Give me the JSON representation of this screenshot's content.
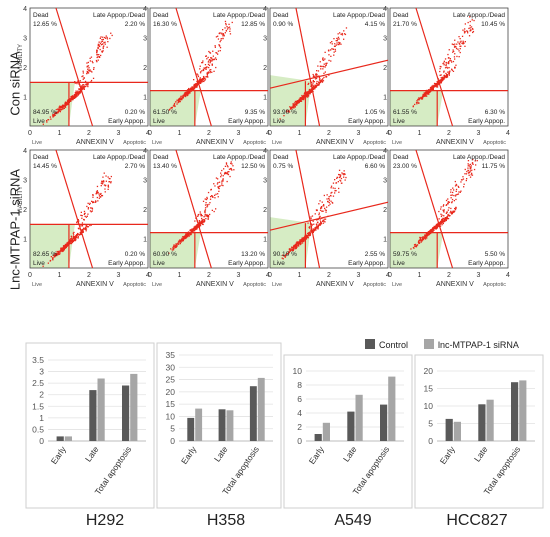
{
  "row_labels": [
    "Con siRNA",
    "Lnc-MTPAP-1 siRNA"
  ],
  "flow_labels": {
    "dead": "Dead",
    "late": "Late Appop./Dead",
    "early": "Early Appop.",
    "live": "Live",
    "annexin": "ANNEXIN V",
    "apoptotic": "Apoptotic",
    "viability": "VIABILITY"
  },
  "flow_ticks": [
    "0",
    "1",
    "2",
    "3",
    "4"
  ],
  "flow_panels": [
    {
      "row": 0,
      "col": 0,
      "dead": "12.65 %",
      "late": "2.20 %",
      "live": "84.95 %",
      "early": "0.20 %"
    },
    {
      "row": 0,
      "col": 1,
      "dead": "16.30 %",
      "late": "12.85 %",
      "live": "61.50 %",
      "early": "9.35 %"
    },
    {
      "row": 0,
      "col": 2,
      "dead": "0.90 %",
      "late": "4.15 %",
      "live": "93.90 %",
      "early": "1.05 %"
    },
    {
      "row": 0,
      "col": 3,
      "dead": "21.70 %",
      "late": "10.45 %",
      "live": "61.55 %",
      "early": "6.30 %"
    },
    {
      "row": 1,
      "col": 0,
      "dead": "14.45 %",
      "late": "2.70 %",
      "live": "82.65 %",
      "early": "0.20 %"
    },
    {
      "row": 1,
      "col": 1,
      "dead": "13.40 %",
      "late": "12.50 %",
      "live": "60.90 %",
      "early": "13.20 %"
    },
    {
      "row": 1,
      "col": 2,
      "dead": "0.75 %",
      "late": "6.60 %",
      "live": "90.10 %",
      "early": "2.55 %"
    },
    {
      "row": 1,
      "col": 3,
      "dead": "23.00 %",
      "late": "11.75 %",
      "live": "59.75 %",
      "early": "5.50 %"
    }
  ],
  "legend": {
    "control": "Control",
    "sirna": "lnc-MTPAP-1 siRNA"
  },
  "colors": {
    "control": "#595959",
    "sirna": "#a6a6a6",
    "scatter": "#e8281c",
    "gate_line": "#e8281c",
    "live_fill": "#d6ecc4"
  },
  "chart_data": [
    {
      "type": "bar",
      "title": "H292",
      "categories": [
        "Early",
        "Late",
        "Total apoptosis"
      ],
      "series": [
        {
          "name": "Control",
          "values": [
            0.2,
            2.2,
            2.4
          ]
        },
        {
          "name": "lnc-MTPAP-1 siRNA",
          "values": [
            0.2,
            2.7,
            2.9
          ]
        }
      ],
      "ylim": [
        0,
        3.5
      ],
      "yticks": [
        "0",
        "0.5",
        "1",
        "1.5",
        "2",
        "2.5",
        "3",
        "3.5"
      ]
    },
    {
      "type": "bar",
      "title": "H358",
      "categories": [
        "Early",
        "Late",
        "Total apoptosis"
      ],
      "series": [
        {
          "name": "Control",
          "values": [
            9.4,
            12.9,
            22.3
          ]
        },
        {
          "name": "lnc-MTPAP-1 siRNA",
          "values": [
            13.2,
            12.5,
            25.7
          ]
        }
      ],
      "ylim": [
        0,
        35
      ],
      "yticks": [
        "0",
        "5",
        "10",
        "15",
        "20",
        "25",
        "30",
        "35"
      ]
    },
    {
      "type": "bar",
      "title": "A549",
      "categories": [
        "Early",
        "Late",
        "Total apoptosis"
      ],
      "series": [
        {
          "name": "Control",
          "values": [
            1.0,
            4.2,
            5.2
          ]
        },
        {
          "name": "lnc-MTPAP-1 siRNA",
          "values": [
            2.6,
            6.6,
            9.2
          ]
        }
      ],
      "ylim": [
        0,
        10
      ],
      "yticks": [
        "0",
        "2",
        "4",
        "6",
        "8",
        "10"
      ]
    },
    {
      "type": "bar",
      "title": "HCC827",
      "categories": [
        "Early",
        "Late",
        "Total apoptosis"
      ],
      "series": [
        {
          "name": "Control",
          "values": [
            6.3,
            10.5,
            16.8
          ]
        },
        {
          "name": "lnc-MTPAP-1 siRNA",
          "values": [
            5.5,
            11.8,
            17.3
          ]
        }
      ],
      "ylim": [
        0,
        20
      ],
      "yticks": [
        "0",
        "5",
        "10",
        "15",
        "20"
      ]
    }
  ]
}
